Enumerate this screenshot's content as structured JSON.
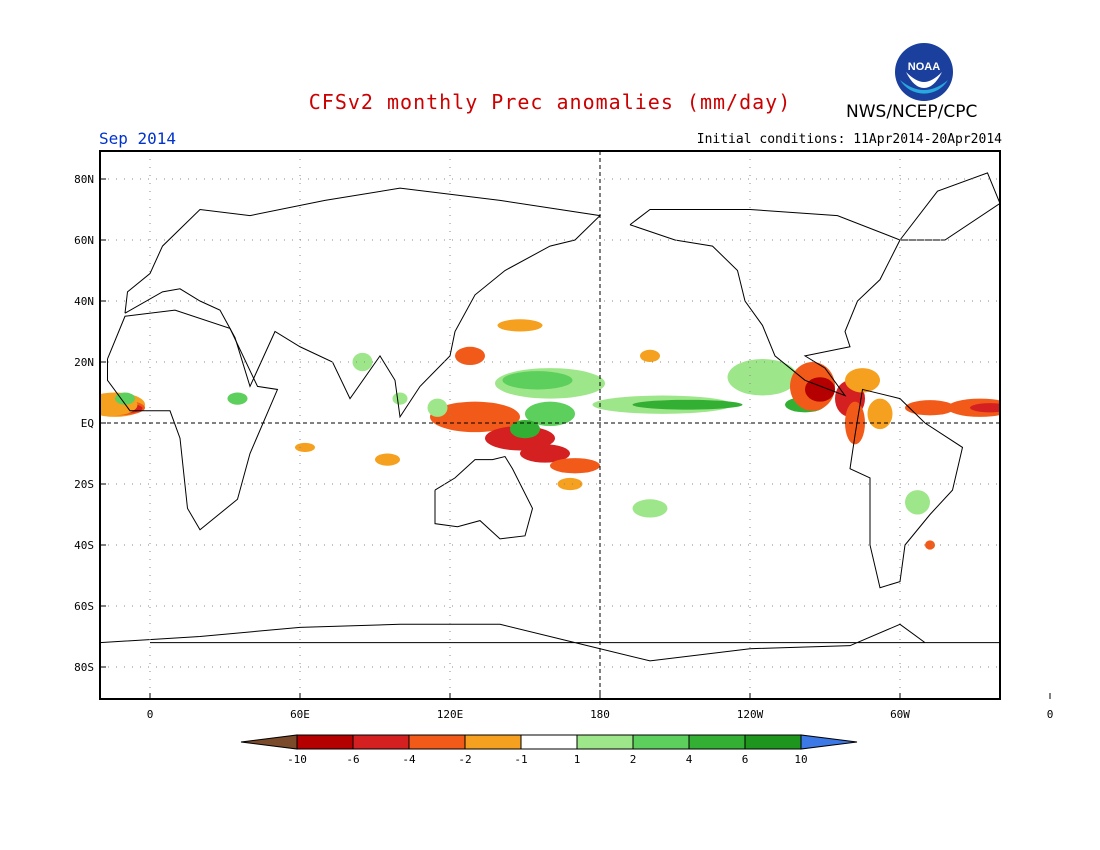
{
  "title": "CFSv2 monthly Prec anomalies (mm/day)",
  "organization": "NWS/NCEP/CPC",
  "logo_text": "NOAA",
  "valid_month": "Sep 2014",
  "initial_conditions": "Initial conditions: 11Apr2014-20Apr2014",
  "colors": {
    "title": "#cc0000",
    "month": "#0033cc",
    "c_neg10": "#7a4a2a",
    "c_neg6": "#b40000",
    "c_neg4": "#d42020",
    "c_neg2": "#f25a1a",
    "c_neg1": "#f5a01e",
    "c_zero": "#ffffff",
    "c_pos1": "#9ee68a",
    "c_pos2": "#5ccf5c",
    "c_pos4": "#33b033",
    "c_pos6": "#1e961e",
    "c_pos10": "#3c78e6"
  },
  "lat_labels": [
    "80N",
    "60N",
    "40N",
    "20N",
    "EQ",
    "20S",
    "40S",
    "60S",
    "80S"
  ],
  "lon_labels": [
    "0",
    "60E",
    "120E",
    "180",
    "120W",
    "60W",
    "0"
  ],
  "colorbar_labels": [
    "-10",
    "-6",
    "-4",
    "-2",
    "-1",
    "1",
    "2",
    "4",
    "6",
    "10"
  ]
}
